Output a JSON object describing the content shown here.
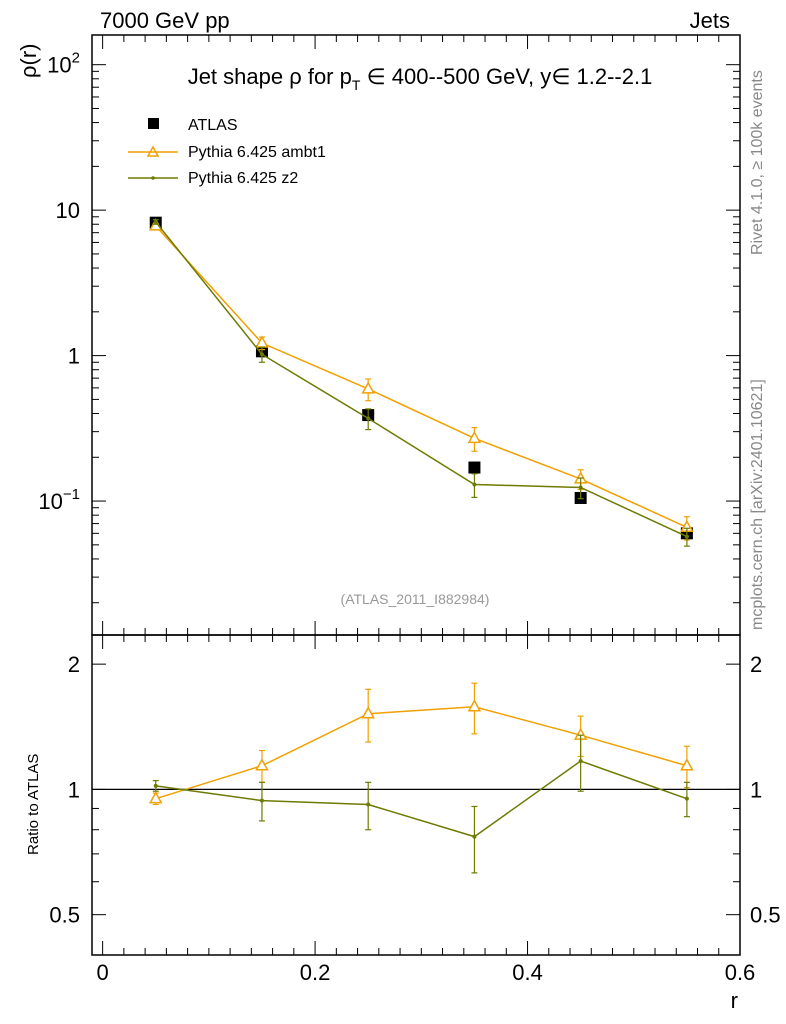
{
  "header": {
    "left": "7000 GeV pp",
    "right": "Jets"
  },
  "side_labels": {
    "top": "Rivet 4.1.0, ≥ 100k events",
    "bottom": "mcplots.cern.ch [arXiv:2401.10621]"
  },
  "chart_data": [
    {
      "type": "line",
      "panel": "main",
      "title": "Jet shape ρ for p_T ∈ 400--500 GeV, y∈ 1.2--2.1",
      "title_parts": {
        "pre": "Jet shape ρ for p",
        "sub": "T",
        "post": " ∈ 400--500 GeV, y∈ 1.2--2.1"
      },
      "xlabel": "r",
      "ylabel": "ρ(r)",
      "yscale": "log",
      "xlim": [
        -0.01,
        0.6
      ],
      "ylim": [
        0.012,
        160
      ],
      "y_ticks": [
        {
          "value": 0.1,
          "base": "10",
          "exp": "−1"
        },
        {
          "value": 1,
          "label": "1"
        },
        {
          "value": 10,
          "label": "10"
        },
        {
          "value": 100,
          "base": "10",
          "exp": "2"
        }
      ],
      "annotation": "(ATLAS_2011_I882984)",
      "legend": [
        "ATLAS",
        "Pythia 6.425 ambt1",
        "Pythia 6.425 z2"
      ],
      "legend_position": "top-left",
      "x": [
        0.05,
        0.15,
        0.25,
        0.35,
        0.45,
        0.55
      ],
      "series": [
        {
          "name": "ATLAS",
          "color": "#000000",
          "marker": "square",
          "values": [
            8.2,
            1.07,
            0.39,
            0.17,
            0.105,
            0.06
          ],
          "err": [
            0.3,
            0.04,
            0.02,
            0.01,
            0.006,
            0.003
          ]
        },
        {
          "name": "Pythia 6.425 ambt1",
          "color": "#f0a000",
          "marker": "triangle",
          "values": [
            7.8,
            1.22,
            0.59,
            0.27,
            0.142,
            0.066
          ],
          "err": [
            0.3,
            0.12,
            0.1,
            0.05,
            0.022,
            0.012
          ]
        },
        {
          "name": "Pythia 6.425 z2",
          "color": "#6e7a00",
          "marker": "dot",
          "values": [
            8.3,
            1.02,
            0.37,
            0.13,
            0.124,
            0.057
          ],
          "err": [
            0.3,
            0.12,
            0.06,
            0.024,
            0.02,
            0.008
          ]
        }
      ]
    },
    {
      "type": "line",
      "panel": "ratio",
      "ylabel": "Ratio to ATLAS",
      "yscale": "log",
      "xlabel": "r",
      "xlim": [
        -0.01,
        0.6
      ],
      "ylim": [
        0.4,
        2.35
      ],
      "y_ticks": [
        {
          "value": 0.5,
          "label": "0.5"
        },
        {
          "value": 1,
          "label": "1"
        },
        {
          "value": 2,
          "label": "2"
        }
      ],
      "x_ticks": [
        {
          "value": 0,
          "label": "0"
        },
        {
          "value": 0.2,
          "label": "0.2"
        },
        {
          "value": 0.4,
          "label": "0.4"
        },
        {
          "value": 0.6,
          "label": "0.6"
        }
      ],
      "reference_line": 1,
      "x": [
        0.05,
        0.15,
        0.25,
        0.35,
        0.45,
        0.55
      ],
      "series": [
        {
          "name": "Pythia 6.425 ambt1",
          "color": "#f0a000",
          "marker": "triangle",
          "values": [
            0.95,
            1.14,
            1.52,
            1.58,
            1.35,
            1.14
          ],
          "err": [
            0.03,
            0.1,
            0.22,
            0.22,
            0.15,
            0.13
          ]
        },
        {
          "name": "Pythia 6.425 z2",
          "color": "#6e7a00",
          "marker": "dot",
          "values": [
            1.02,
            0.94,
            0.92,
            0.77,
            1.17,
            0.95
          ],
          "err": [
            0.03,
            0.1,
            0.12,
            0.14,
            0.18,
            0.09
          ]
        }
      ]
    }
  ]
}
